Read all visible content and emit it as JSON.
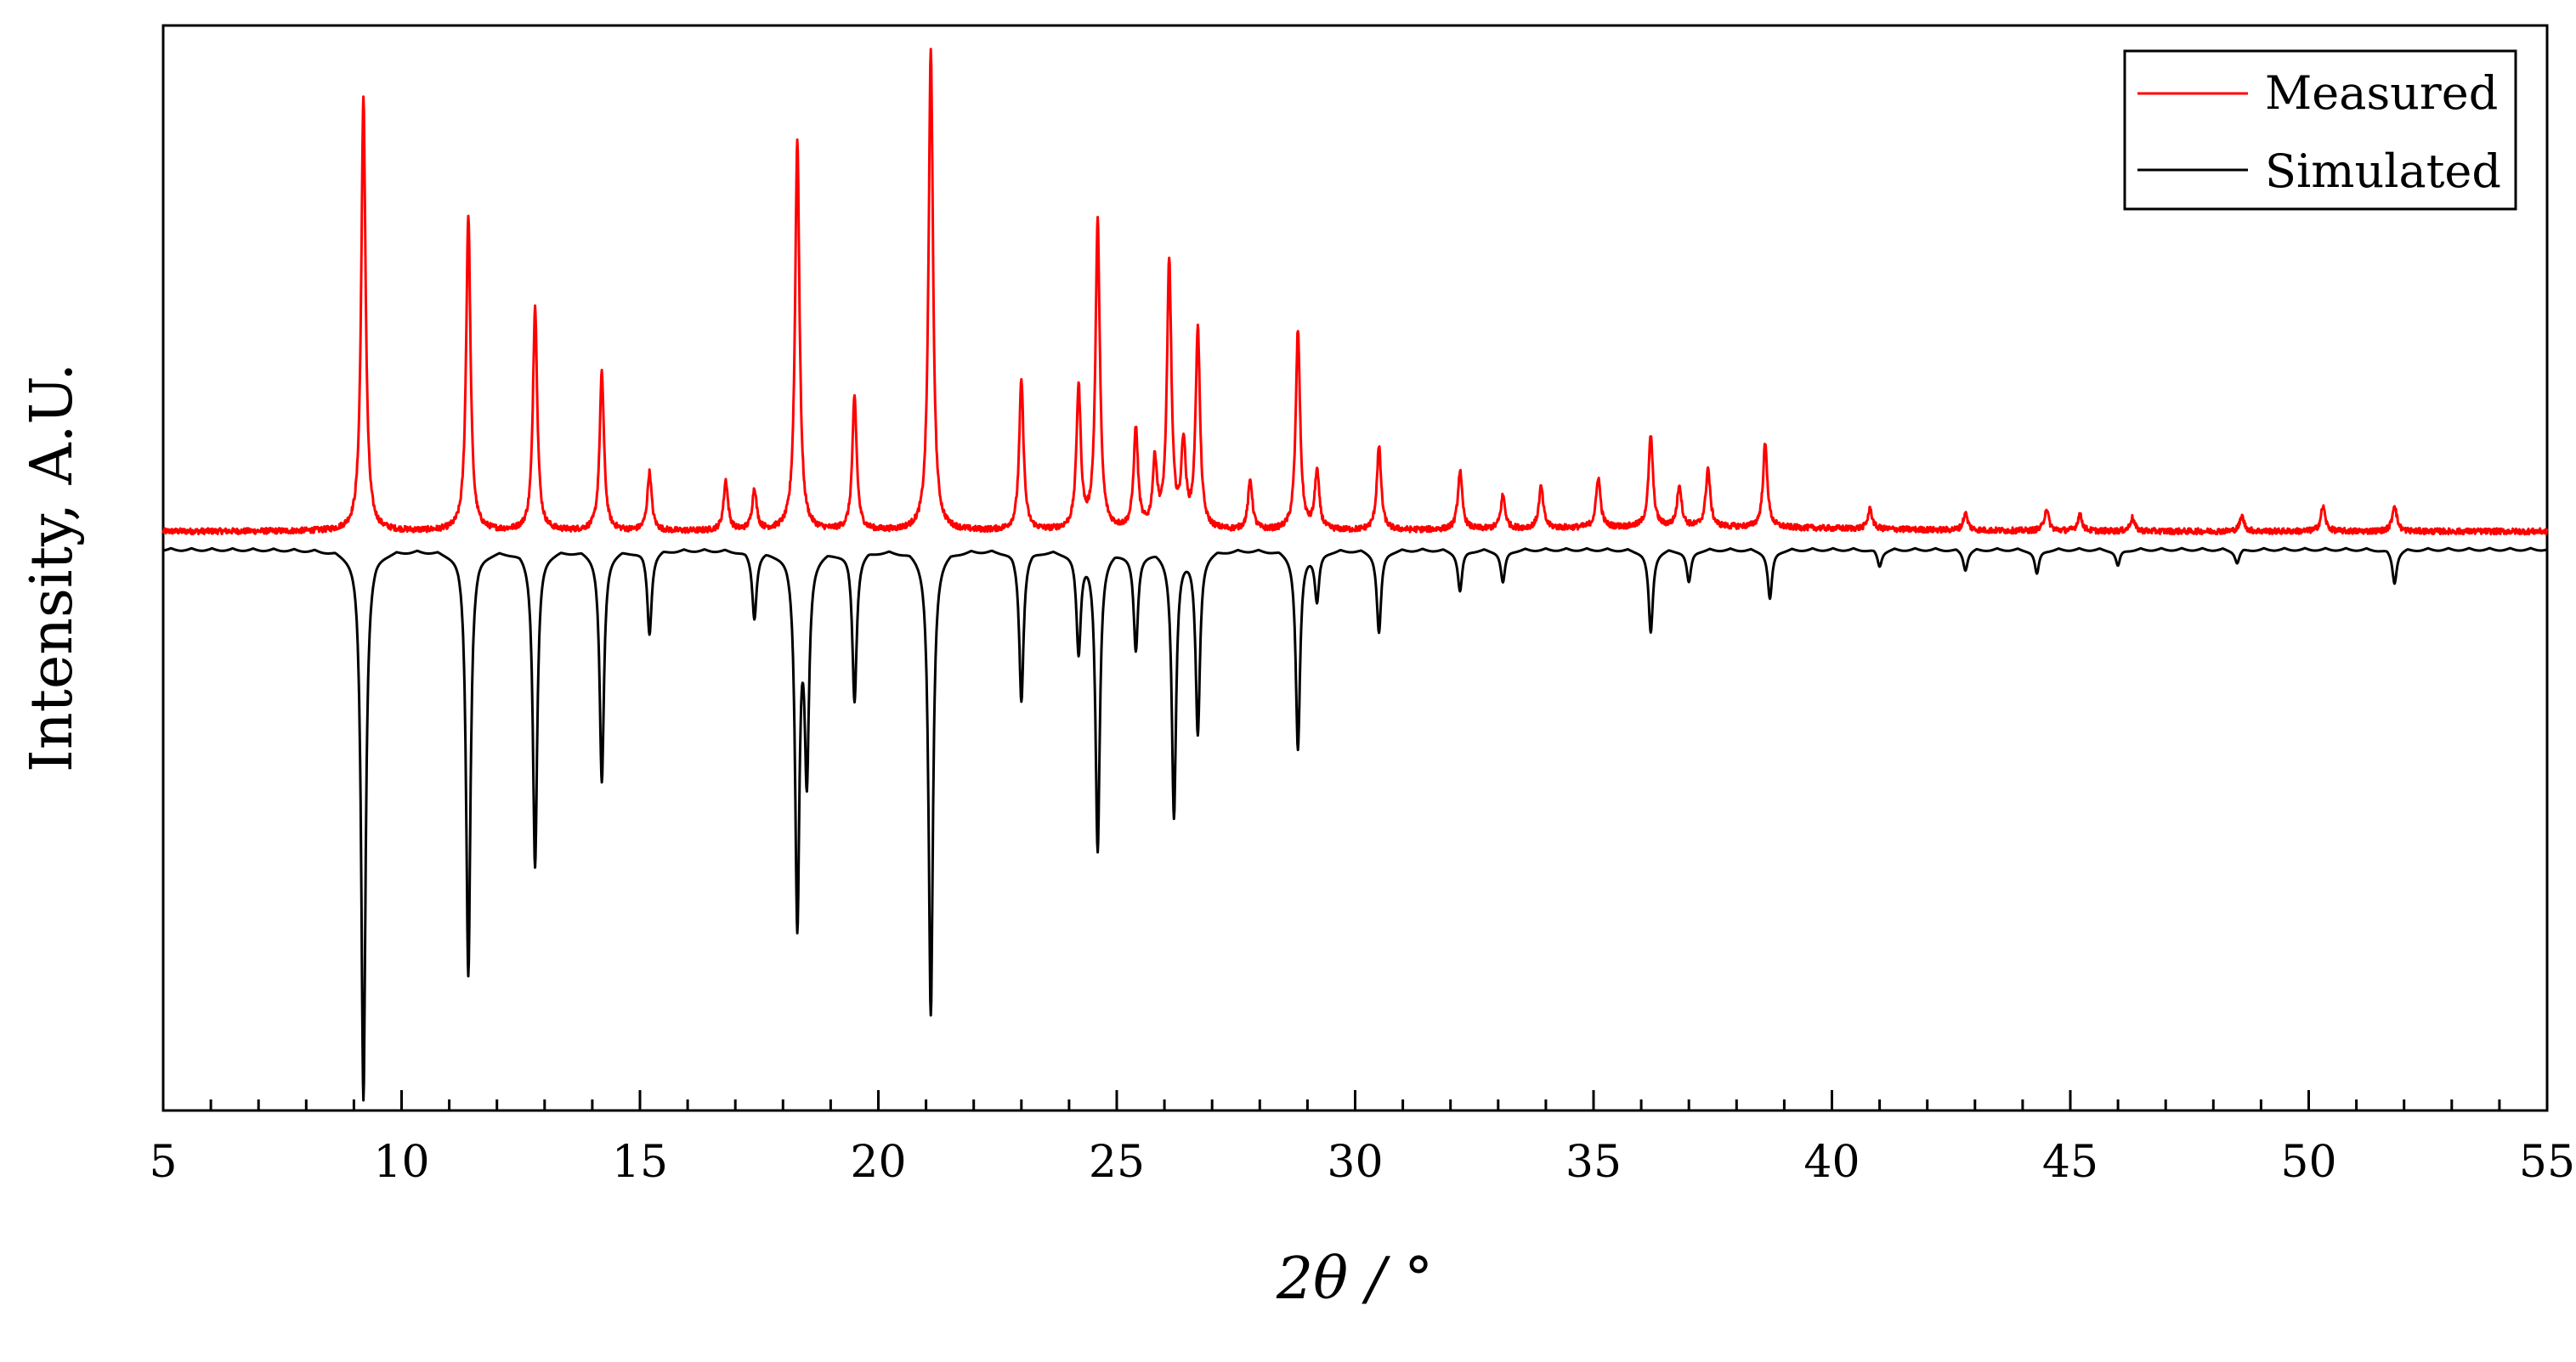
{
  "chart_data": {
    "type": "line",
    "xlabel": "2θ / °",
    "ylabel": "Intensity, A.U.",
    "xlim": [
      5,
      55
    ],
    "x_ticks": [
      "5",
      "10",
      "15",
      "20",
      "25",
      "30",
      "35",
      "40",
      "45",
      "50",
      "55"
    ],
    "y_ticks": [],
    "grid": false,
    "legend_position": "top-right",
    "series": [
      {
        "name": "Measured",
        "color": "#ff0000",
        "baseline": 1.0,
        "peaks": [
          [
            9.2,
            26
          ],
          [
            11.4,
            19
          ],
          [
            12.8,
            13.5
          ],
          [
            14.2,
            9.5
          ],
          [
            15.2,
            3.5
          ],
          [
            16.8,
            3.0
          ],
          [
            17.4,
            2.5
          ],
          [
            18.3,
            23.5
          ],
          [
            19.5,
            8.0
          ],
          [
            21.1,
            29.0
          ],
          [
            23.0,
            9.0
          ],
          [
            24.2,
            8.5
          ],
          [
            24.6,
            18.5
          ],
          [
            25.4,
            6.0
          ],
          [
            25.8,
            4.0
          ],
          [
            26.1,
            16.0
          ],
          [
            26.4,
            5.0
          ],
          [
            26.7,
            12.0
          ],
          [
            27.8,
            3.0
          ],
          [
            28.8,
            12.0
          ],
          [
            29.2,
            3.5
          ],
          [
            30.5,
            5.0
          ],
          [
            32.2,
            3.5
          ],
          [
            33.1,
            2.0
          ],
          [
            33.9,
            2.5
          ],
          [
            35.1,
            3.0
          ],
          [
            36.2,
            5.5
          ],
          [
            36.8,
            2.5
          ],
          [
            37.4,
            3.5
          ],
          [
            38.6,
            5.0
          ],
          [
            40.8,
            1.2
          ],
          [
            42.8,
            1.0
          ],
          [
            44.5,
            1.3
          ],
          [
            45.2,
            1.0
          ],
          [
            46.3,
            0.8
          ],
          [
            48.6,
            0.9
          ],
          [
            50.3,
            1.5
          ],
          [
            51.8,
            1.6
          ]
        ]
      },
      {
        "name": "Simulated",
        "color": "#000000",
        "baseline": 0.0,
        "peaks": [
          [
            9.2,
            -33
          ],
          [
            11.4,
            -25.5
          ],
          [
            12.8,
            -19
          ],
          [
            14.2,
            -14
          ],
          [
            15.2,
            -5
          ],
          [
            17.4,
            -4
          ],
          [
            18.3,
            -22
          ],
          [
            18.5,
            -13
          ],
          [
            19.5,
            -9
          ],
          [
            21.1,
            -28
          ],
          [
            23.0,
            -9
          ],
          [
            24.2,
            -6
          ],
          [
            24.6,
            -18
          ],
          [
            25.4,
            -6
          ],
          [
            26.2,
            -16
          ],
          [
            26.7,
            -11
          ],
          [
            28.8,
            -12
          ],
          [
            29.2,
            -3
          ],
          [
            30.5,
            -5
          ],
          [
            32.2,
            -2.5
          ],
          [
            33.1,
            -2
          ],
          [
            36.2,
            -5
          ],
          [
            37.0,
            -2
          ],
          [
            38.7,
            -3
          ],
          [
            41.0,
            -1
          ],
          [
            42.8,
            -1.2
          ],
          [
            44.3,
            -1.5
          ],
          [
            46.0,
            -1
          ],
          [
            48.5,
            -0.8
          ],
          [
            51.8,
            -2
          ]
        ]
      }
    ]
  }
}
